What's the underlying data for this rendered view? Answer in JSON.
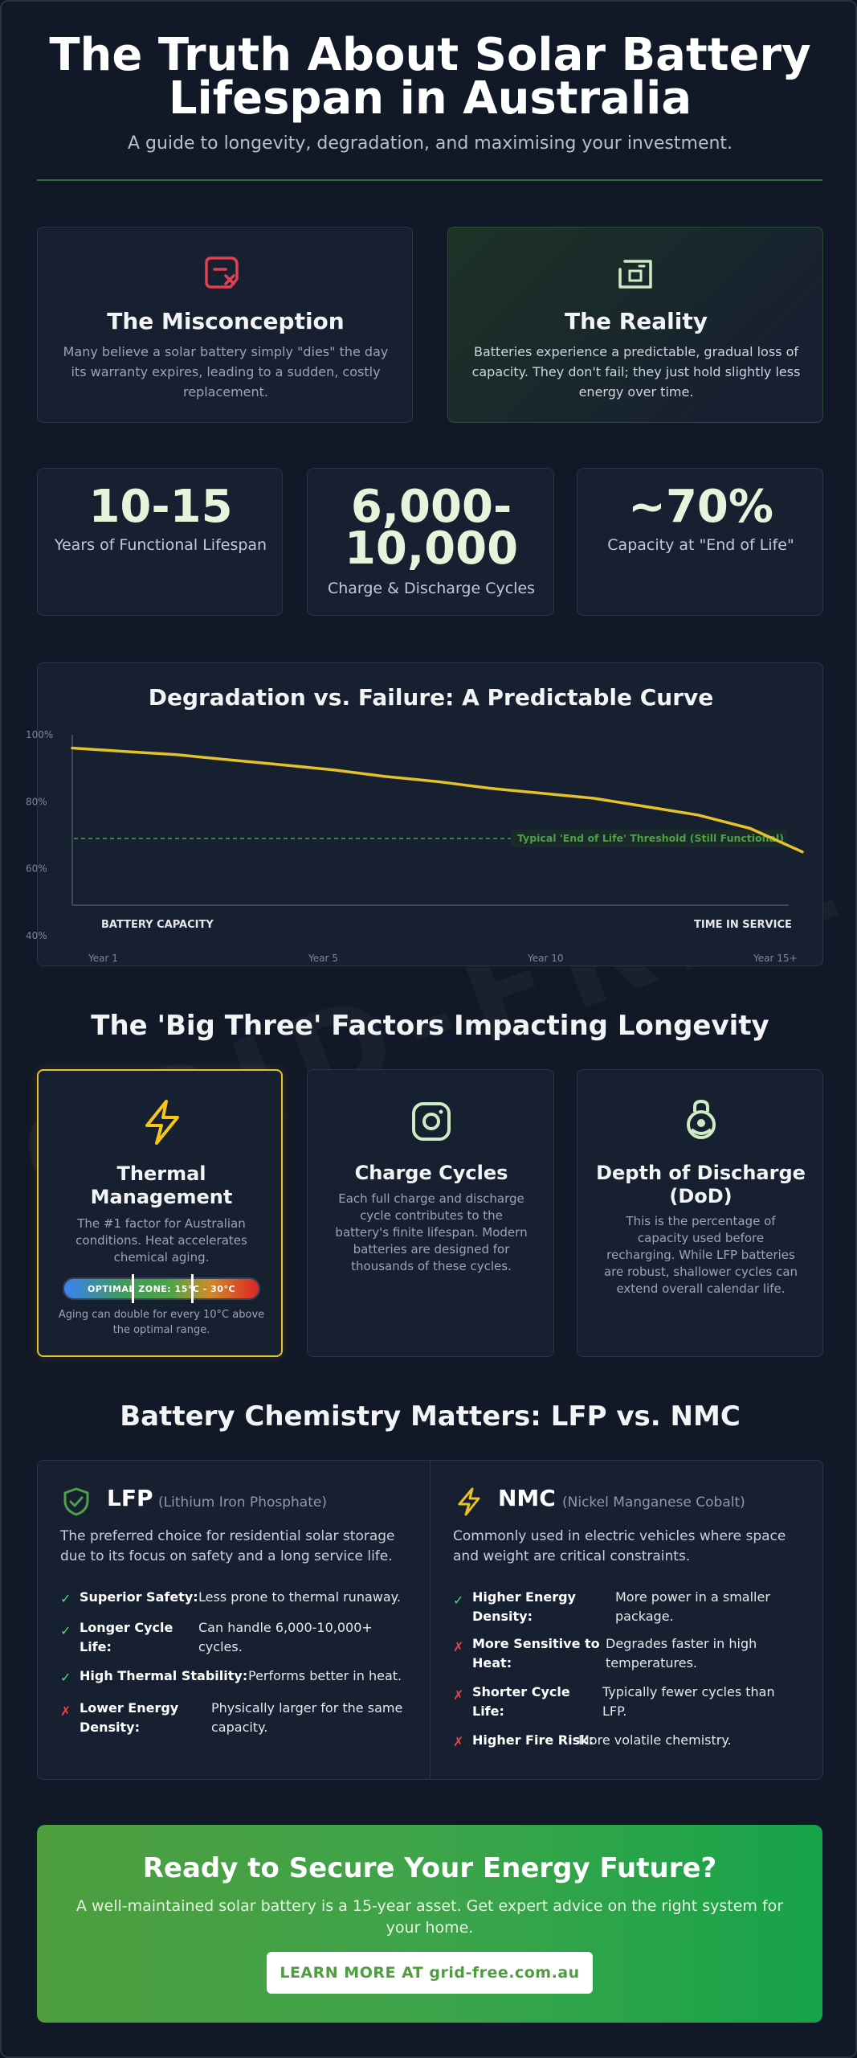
{
  "header": {
    "title_line1": "The Truth About Solar Battery",
    "title_line2": "Lifespan in Australia",
    "subtitle": "A guide to longevity, degradation, and maximising your investment."
  },
  "myth": {
    "misconception": {
      "icon": "alert-tag-icon",
      "title": "The Misconception",
      "text": "Many believe a solar battery simply \"dies\" the day its warranty expires, leading to a sudden, costly replacement."
    },
    "reality": {
      "icon": "battery-box-icon",
      "title": "The Reality",
      "text": "Batteries experience a predictable, gradual loss of capacity. They don't fail; they just hold slightly less energy over time."
    }
  },
  "stats": [
    {
      "value_line1": "10-15",
      "value_line2": "",
      "label": "Years of Functional Lifespan"
    },
    {
      "value_line1": "6,000-",
      "value_line2": "10,000",
      "label": "Charge & Discharge Cycles"
    },
    {
      "value_line1": "~70%",
      "value_line2": "",
      "label": "Capacity at \"End of Life\""
    }
  ],
  "chart_data": {
    "type": "line",
    "title": "Degradation vs. Failure: A Predictable Curve",
    "xlabel": "TIME IN SERVICE",
    "ylabel": "BATTERY CAPACITY",
    "x_ticks": [
      "Year 1",
      "Year 5",
      "Year 10",
      "Year 15+"
    ],
    "y_ticks": [
      "100%",
      "80%",
      "60%",
      "40%"
    ],
    "ylim": [
      40,
      100
    ],
    "x": [
      1,
      2,
      3,
      4,
      5,
      6,
      7,
      8,
      9,
      10,
      11,
      12,
      13,
      14,
      15
    ],
    "series": [
      {
        "values": [
          97,
          96,
          95,
          93.5,
          92,
          90.5,
          88.5,
          87,
          85,
          83.5,
          82,
          79.5,
          77,
          73,
          66
        ]
      }
    ],
    "threshold": {
      "value": 70,
      "label": "Typical 'End of Life' Threshold (Still Functional)"
    },
    "colors": {
      "line": "#e6c229",
      "threshold": "#4f9e4a"
    },
    "grid": false
  },
  "factors": {
    "title": "The 'Big Three' Factors Impacting Longevity",
    "items": [
      {
        "icon": "lightning-bolt-icon",
        "title_line1": "Thermal",
        "title_line2": "Management",
        "text": "The #1 factor for Australian conditions. Heat accelerates chemical aging.",
        "zone_label": "OPTIMAL ZONE: 15°C - 30°C",
        "note": "Aging can double for every 10°C above the optimal range."
      },
      {
        "icon": "cycle-ring-icon",
        "title_line1": "Charge Cycles",
        "title_line2": "",
        "text": "Each full charge and discharge cycle contributes to the battery's finite lifespan. Modern batteries are designed for thousands of these cycles."
      },
      {
        "icon": "gauge-lock-icon",
        "title_line1": "Depth of Discharge",
        "title_line2": "(DoD)",
        "text": "This is the percentage of capacity used before recharging. While LFP batteries are robust, shallower cycles can extend overall calendar life."
      }
    ]
  },
  "chemistry": {
    "title": "Battery Chemistry Matters: LFP vs. NMC",
    "lfp": {
      "icon": "shield-check-icon",
      "name": "LFP",
      "full": "(Lithium Iron Phosphate)",
      "intro": "The preferred choice for residential solar storage due to its focus on safety and a long service life.",
      "points": [
        {
          "mark": "✓",
          "label": "Superior Safety:",
          "desc": "Less prone to thermal runaway."
        },
        {
          "mark": "✓",
          "label_line1": "Longer Cycle",
          "label_line2": "Life:",
          "desc_line1": "Can handle 6,000-10,000+",
          "desc_line2": "cycles."
        },
        {
          "mark": "✓",
          "label": "High Thermal Stability:",
          "desc": "Performs better in heat."
        },
        {
          "mark": "✗",
          "label_line1": "Lower Energy",
          "label_line2": "Density:",
          "desc_line1": "Physically larger for the same",
          "desc_line2": "capacity."
        }
      ]
    },
    "nmc": {
      "icon": "lightning-bolt-icon",
      "name": "NMC",
      "full": "(Nickel Manganese Cobalt)",
      "intro": "Commonly used in electric vehicles where space and weight are critical constraints.",
      "points": [
        {
          "mark": "✓",
          "label_line1": "Higher Energy",
          "label_line2": "Density:",
          "desc_line1": "More power in a smaller",
          "desc_line2": "package."
        },
        {
          "mark": "✗",
          "label_line1": "More Sensitive to",
          "label_line2": "Heat:",
          "desc_line1": "Degrades faster in high",
          "desc_line2": "temperatures."
        },
        {
          "mark": "✗",
          "label_line1": "Shorter Cycle",
          "label_line2": "Life:",
          "desc_line1": "Typically fewer cycles than",
          "desc_line2": "LFP."
        },
        {
          "mark": "✗",
          "label": "Higher Fire Risk:",
          "desc": "More volatile chemistry."
        }
      ]
    }
  },
  "cta": {
    "title": "Ready to Secure Your Energy Future?",
    "text": "A well-maintained solar battery is a 15-year asset. Get expert advice on the right system for your home.",
    "button": "LEARN MORE AT grid-free.com.au"
  },
  "watermark": "GRID-FREE.COM.AU",
  "colors": {
    "accent": "#e6c229",
    "green": "#4ade80",
    "red": "#ef4444",
    "brand_green": "#4e9e3e"
  }
}
